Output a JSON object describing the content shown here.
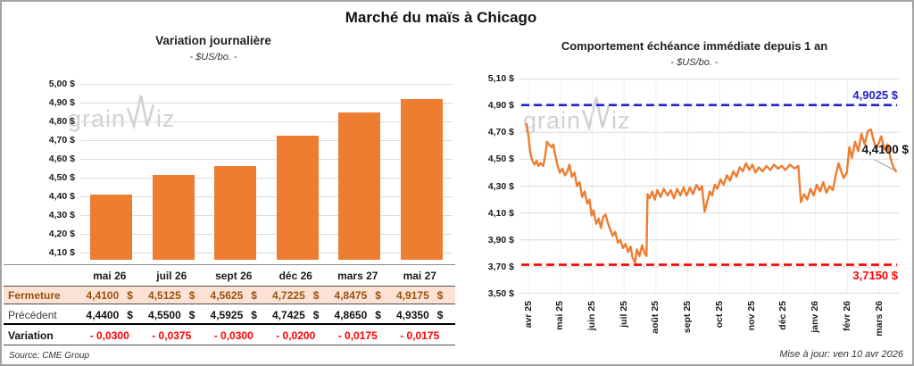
{
  "page": {
    "title": "Marché du maïs à Chicago",
    "source": "Source: CME Group",
    "updated": "Mise à jour: ven 10 avr 2026",
    "watermark_prefix": "grain",
    "watermark_suffix": "iz"
  },
  "table": {
    "currency": "$",
    "rows": [
      {
        "label": "Fermeture",
        "values": [
          "4,4100",
          "4,5125",
          "4,5625",
          "4,7225",
          "4,8475",
          "4,9175"
        ]
      },
      {
        "label": "Précédent",
        "values": [
          "4,4400",
          "4,5500",
          "4,5925",
          "4,7425",
          "4,8650",
          "4,9350"
        ]
      },
      {
        "label": "Variation",
        "values": [
          "- 0,0300",
          "- 0,0375",
          "- 0,0300",
          "- 0,0200",
          "- 0,0175",
          "- 0,0175"
        ]
      }
    ]
  },
  "chart_data": [
    {
      "type": "bar",
      "title": "Variation journalière",
      "subtitle": "- $US/bo. -",
      "categories": [
        "mai 26",
        "juil 26",
        "sept 26",
        "déc 26",
        "mars 27",
        "mai 27"
      ],
      "values": [
        4.41,
        4.5125,
        4.5625,
        4.7225,
        4.8475,
        4.9175
      ],
      "bar_color": "#ED7D31",
      "ylim": [
        4.06,
        5.0
      ],
      "ytick_values": [
        5.0,
        4.9,
        4.8,
        4.7,
        4.6,
        4.5,
        4.4,
        4.3,
        4.2,
        4.1
      ],
      "ytick_labels": [
        "5,00 $",
        "4,90 $",
        "4,80 $",
        "4,70 $",
        "4,60 $",
        "4,50 $",
        "4,40 $",
        "4,30 $",
        "4,20 $",
        "4,10 $"
      ]
    },
    {
      "type": "line",
      "title": "Comportement échéance immédiate depuis 1 an",
      "subtitle": "- $US/bo. -",
      "x_labels": [
        "avr 25",
        "mai 25",
        "juin 25",
        "juil 25",
        "août 25",
        "sept 25",
        "oct 25",
        "nov 25",
        "déc 25",
        "janv 26",
        "févr 26",
        "mars 26"
      ],
      "ylim": [
        3.5,
        5.1
      ],
      "ytick_values": [
        5.1,
        4.9,
        4.7,
        4.5,
        4.3,
        4.1,
        3.9,
        3.7,
        3.5
      ],
      "ytick_labels": [
        "5,10 $",
        "4,90 $",
        "4,70 $",
        "4,50 $",
        "4,30 $",
        "4,10 $",
        "3,90 $",
        "3,70 $",
        "3,50 $"
      ],
      "ref_lines": [
        {
          "label": "4,9025 $",
          "value": 4.9025,
          "color": "#2222CB",
          "style": "dashed"
        },
        {
          "label": "3,7150 $",
          "value": 3.715,
          "color": "#FF0000",
          "style": "dashed"
        }
      ],
      "last_point_label": "4,4100 $",
      "series": [
        {
          "name": "échéance immédiate",
          "color": "#ED7D31",
          "points": [
            [
              0,
              4.76
            ],
            [
              0.06,
              4.67
            ],
            [
              0.12,
              4.54
            ],
            [
              0.18,
              4.49
            ],
            [
              0.25,
              4.46
            ],
            [
              0.31,
              4.49
            ],
            [
              0.37,
              4.45
            ],
            [
              0.44,
              4.47
            ],
            [
              0.52,
              4.45
            ],
            [
              0.58,
              4.52
            ],
            [
              0.64,
              4.63
            ],
            [
              0.7,
              4.61
            ],
            [
              0.78,
              4.59
            ],
            [
              0.84,
              4.61
            ],
            [
              0.9,
              4.53
            ],
            [
              0.97,
              4.45
            ],
            [
              1.04,
              4.4
            ],
            [
              1.12,
              4.43
            ],
            [
              1.2,
              4.38
            ],
            [
              1.28,
              4.41
            ],
            [
              1.34,
              4.46
            ],
            [
              1.42,
              4.37
            ],
            [
              1.5,
              4.4
            ],
            [
              1.58,
              4.3
            ],
            [
              1.66,
              4.33
            ],
            [
              1.74,
              4.22
            ],
            [
              1.82,
              4.26
            ],
            [
              1.9,
              4.17
            ],
            [
              1.97,
              4.2
            ],
            [
              2.04,
              4.08
            ],
            [
              2.1,
              4.12
            ],
            [
              2.18,
              4.02
            ],
            [
              2.26,
              4.06
            ],
            [
              2.33,
              3.99
            ],
            [
              2.4,
              4.07
            ],
            [
              2.47,
              4.09
            ],
            [
              2.54,
              4.03
            ],
            [
              2.62,
              3.98
            ],
            [
              2.7,
              3.93
            ],
            [
              2.78,
              3.96
            ],
            [
              2.86,
              3.88
            ],
            [
              2.94,
              3.9
            ],
            [
              3.02,
              3.84
            ],
            [
              3.1,
              3.87
            ],
            [
              3.18,
              3.81
            ],
            [
              3.26,
              3.85
            ],
            [
              3.32,
              3.77
            ],
            [
              3.4,
              3.73
            ],
            [
              3.46,
              3.83
            ],
            [
              3.54,
              3.78
            ],
            [
              3.62,
              3.86
            ],
            [
              3.7,
              3.8
            ],
            [
              3.76,
              3.78
            ],
            [
              3.79,
              4.24
            ],
            [
              3.86,
              4.21
            ],
            [
              3.94,
              4.26
            ],
            [
              4.02,
              4.2
            ],
            [
              4.1,
              4.27
            ],
            [
              4.2,
              4.22
            ],
            [
              4.3,
              4.28
            ],
            [
              4.42,
              4.23
            ],
            [
              4.52,
              4.27
            ],
            [
              4.62,
              4.21
            ],
            [
              4.72,
              4.28
            ],
            [
              4.82,
              4.23
            ],
            [
              4.92,
              4.29
            ],
            [
              5.02,
              4.23
            ],
            [
              5.12,
              4.29
            ],
            [
              5.22,
              4.24
            ],
            [
              5.32,
              4.31
            ],
            [
              5.42,
              4.27
            ],
            [
              5.5,
              4.3
            ],
            [
              5.58,
              4.11
            ],
            [
              5.66,
              4.18
            ],
            [
              5.74,
              4.26
            ],
            [
              5.82,
              4.23
            ],
            [
              5.9,
              4.31
            ],
            [
              5.98,
              4.28
            ],
            [
              6.08,
              4.35
            ],
            [
              6.18,
              4.31
            ],
            [
              6.28,
              4.38
            ],
            [
              6.38,
              4.34
            ],
            [
              6.48,
              4.41
            ],
            [
              6.58,
              4.37
            ],
            [
              6.68,
              4.44
            ],
            [
              6.78,
              4.41
            ],
            [
              6.88,
              4.47
            ],
            [
              6.98,
              4.42
            ],
            [
              7.08,
              4.46
            ],
            [
              7.18,
              4.4
            ],
            [
              7.28,
              4.44
            ],
            [
              7.4,
              4.41
            ],
            [
              7.52,
              4.45
            ],
            [
              7.64,
              4.42
            ],
            [
              7.76,
              4.46
            ],
            [
              7.88,
              4.43
            ],
            [
              8,
              4.45
            ],
            [
              8.12,
              4.42
            ],
            [
              8.26,
              4.46
            ],
            [
              8.4,
              4.43
            ],
            [
              8.52,
              4.45
            ],
            [
              8.6,
              4.18
            ],
            [
              8.7,
              4.24
            ],
            [
              8.8,
              4.2
            ],
            [
              8.9,
              4.28
            ],
            [
              9,
              4.23
            ],
            [
              9.1,
              4.31
            ],
            [
              9.2,
              4.26
            ],
            [
              9.3,
              4.33
            ],
            [
              9.4,
              4.25
            ],
            [
              9.5,
              4.3
            ],
            [
              9.6,
              4.27
            ],
            [
              9.7,
              4.39
            ],
            [
              9.78,
              4.47
            ],
            [
              9.86,
              4.41
            ],
            [
              9.94,
              4.36
            ],
            [
              10.04,
              4.4
            ],
            [
              10.12,
              4.59
            ],
            [
              10.2,
              4.51
            ],
            [
              10.3,
              4.63
            ],
            [
              10.4,
              4.56
            ],
            [
              10.5,
              4.69
            ],
            [
              10.6,
              4.61
            ],
            [
              10.7,
              4.71
            ],
            [
              10.8,
              4.72
            ],
            [
              10.88,
              4.64
            ],
            [
              10.96,
              4.58
            ],
            [
              11.04,
              4.62
            ],
            [
              11.12,
              4.67
            ],
            [
              11.22,
              4.57
            ],
            [
              11.32,
              4.61
            ],
            [
              11.42,
              4.5
            ],
            [
              11.5,
              4.44
            ],
            [
              11.58,
              4.41
            ]
          ]
        }
      ]
    }
  ]
}
